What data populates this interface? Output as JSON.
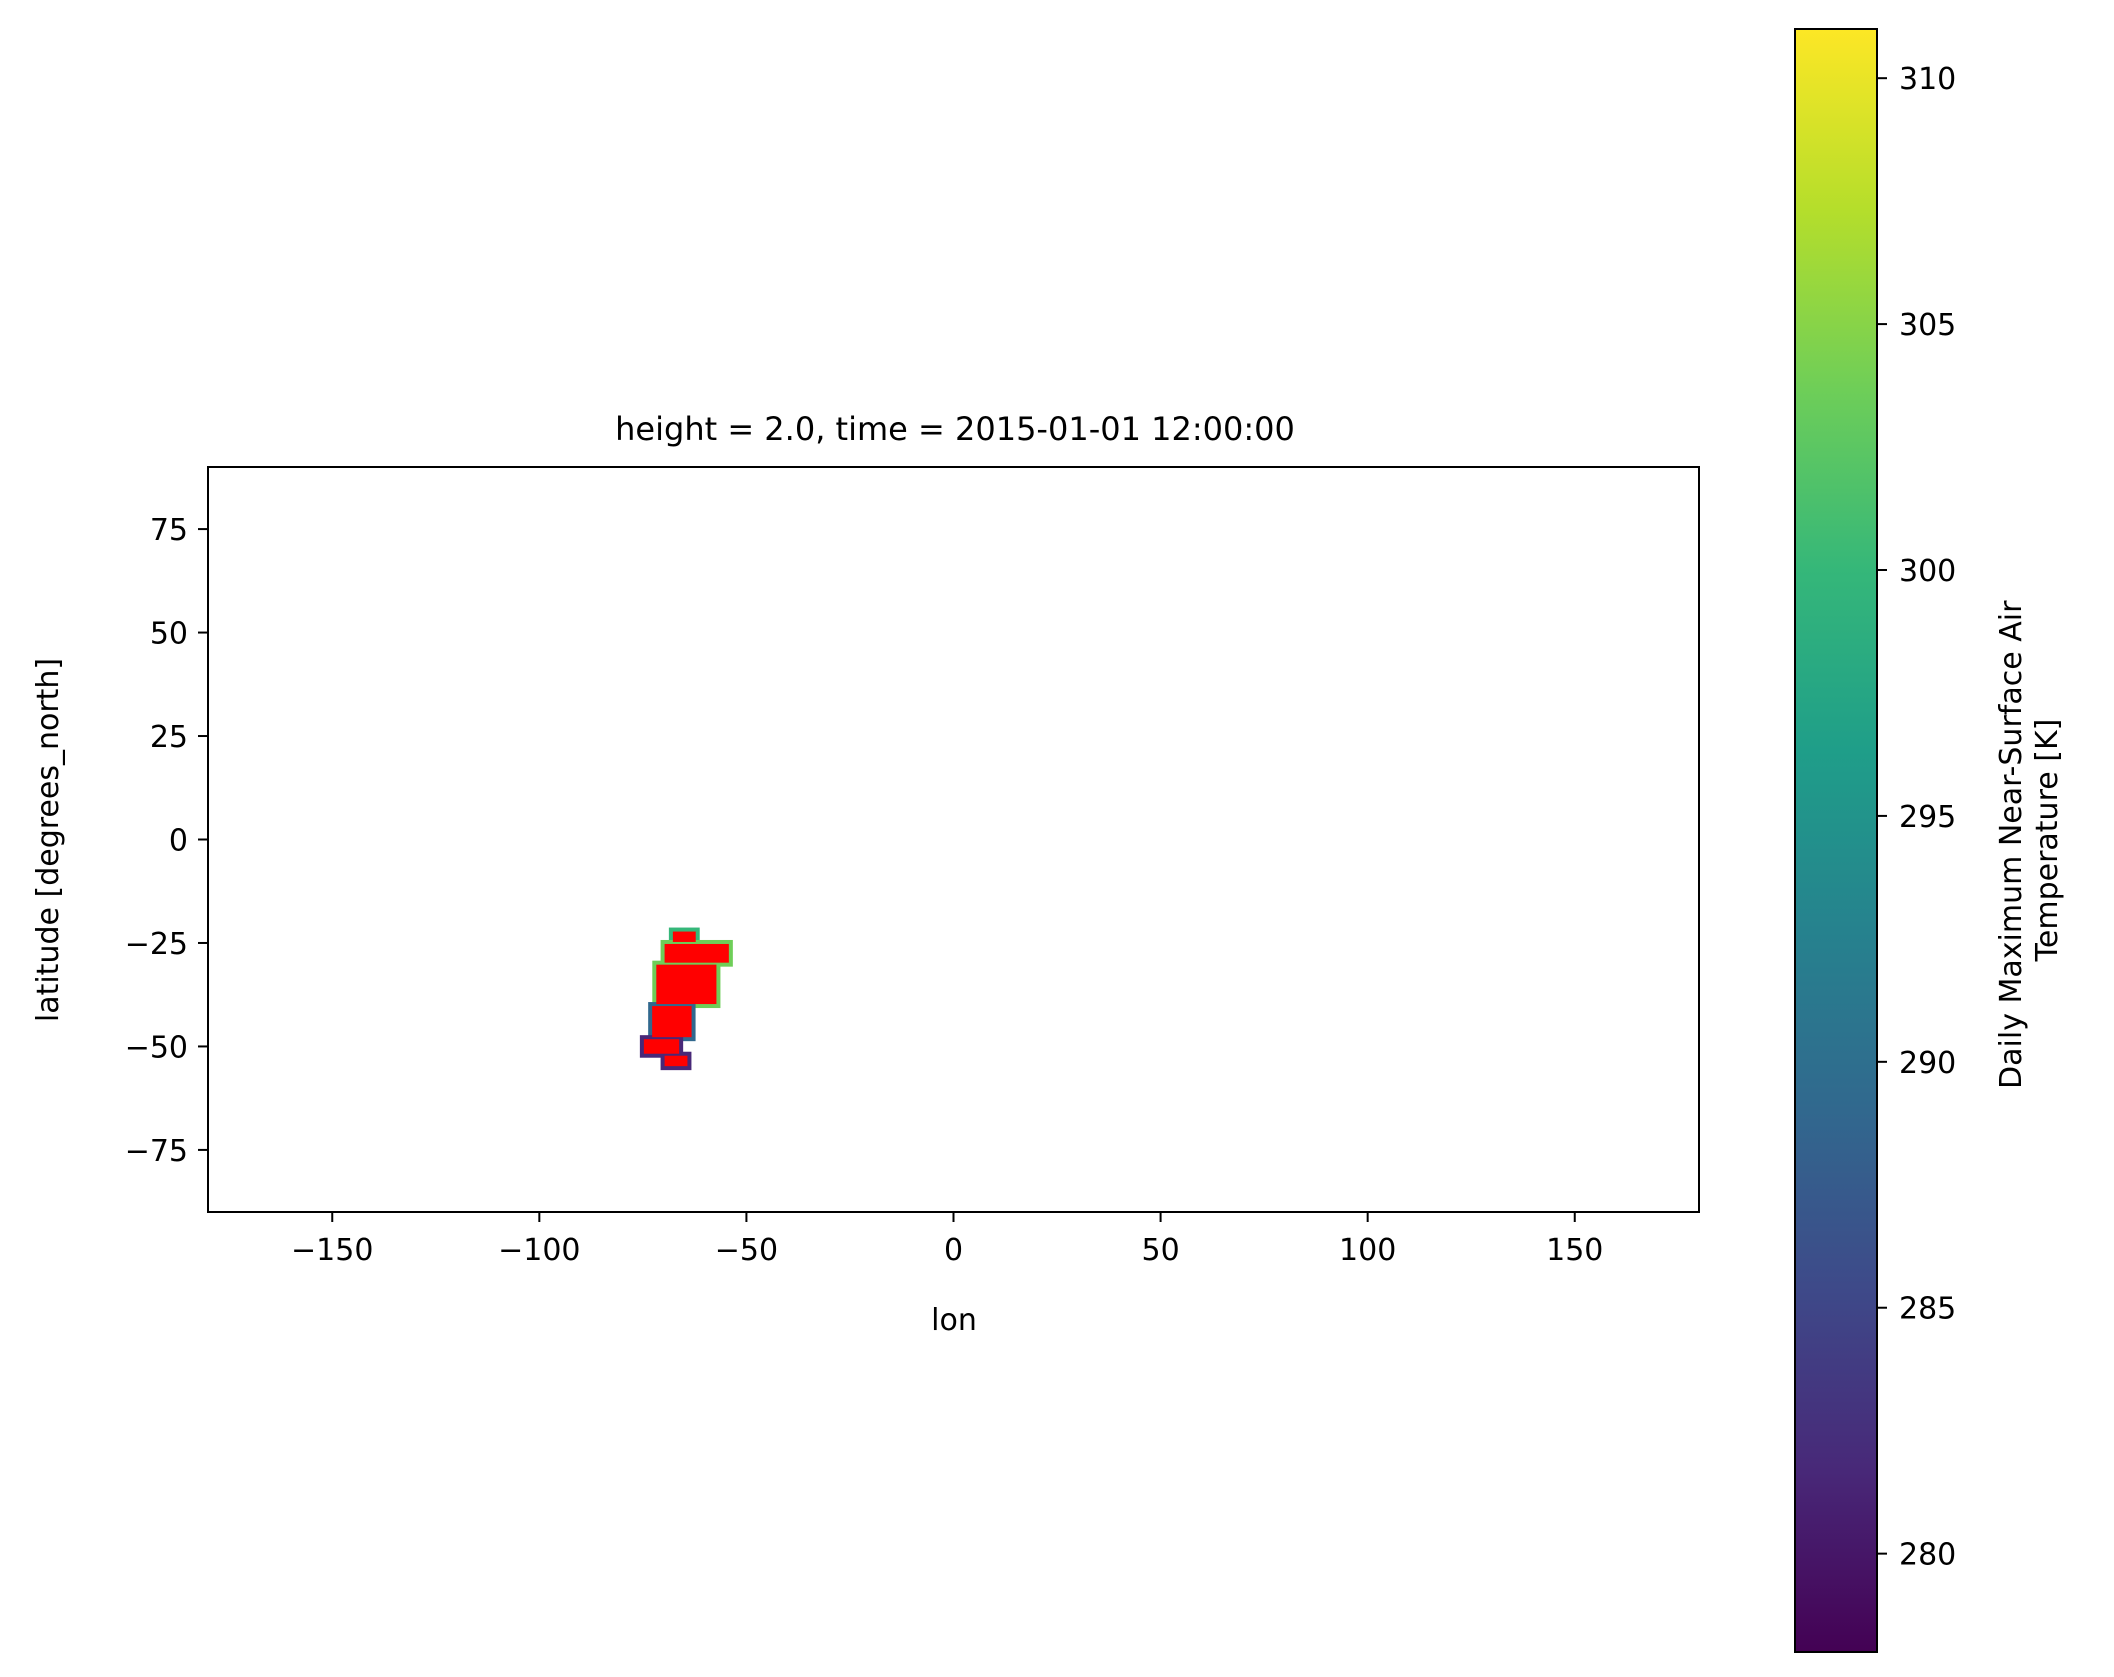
{
  "chart_data": {
    "type": "heatmap",
    "title": "height = 2.0, time = 2015-01-01 12:00:00",
    "xlabel": "lon",
    "ylabel": "latitude [degrees_north]",
    "xlim": [
      -180,
      180
    ],
    "ylim": [
      -90,
      90
    ],
    "xticks": [
      -150,
      -100,
      -50,
      0,
      50,
      100,
      150
    ],
    "xtick_labels": [
      "−150",
      "−100",
      "−50",
      "0",
      "50",
      "100",
      "150"
    ],
    "yticks": [
      75,
      50,
      25,
      0,
      -25,
      -50,
      -75
    ],
    "ytick_labels": [
      "75",
      "50",
      "25",
      "0",
      "−25",
      "−50",
      "−75"
    ],
    "grid": false,
    "colorbar": {
      "label_lines": [
        "Daily Maximum Near-Surface Air",
        "Temperature [K]"
      ],
      "colormap": "viridis",
      "range": [
        278,
        311
      ],
      "ticks": [
        280,
        285,
        290,
        295,
        300,
        305,
        310
      ],
      "tick_labels": [
        "280",
        "285",
        "290",
        "295",
        "300",
        "305",
        "310"
      ],
      "stops": [
        "#440154",
        "#482878",
        "#3e4989",
        "#31688e",
        "#26828e",
        "#1f9e89",
        "#35b779",
        "#6ece58",
        "#b5de2b",
        "#fde725"
      ]
    },
    "highlight_color": "#ff0000",
    "data_region": {
      "description_free_values": true,
      "cells": [
        {
          "lon_min": -68,
          "lon_max": -62,
          "lat_min": -25,
          "lat_max": -22,
          "value": 300
        },
        {
          "lon_min": -70,
          "lon_max": -54,
          "lat_min": -30,
          "lat_max": -25,
          "value": 305
        },
        {
          "lon_min": -72,
          "lon_max": -57,
          "lat_min": -40,
          "lat_max": -30,
          "value": 302
        },
        {
          "lon_min": -73,
          "lon_max": -63,
          "lat_min": -48,
          "lat_max": -40,
          "value": 290
        },
        {
          "lon_min": -75,
          "lon_max": -66,
          "lat_min": -52,
          "lat_max": -48,
          "value": 283
        },
        {
          "lon_min": -70,
          "lon_max": -64,
          "lat_min": -55,
          "lat_max": -52,
          "value": 280
        }
      ]
    }
  }
}
